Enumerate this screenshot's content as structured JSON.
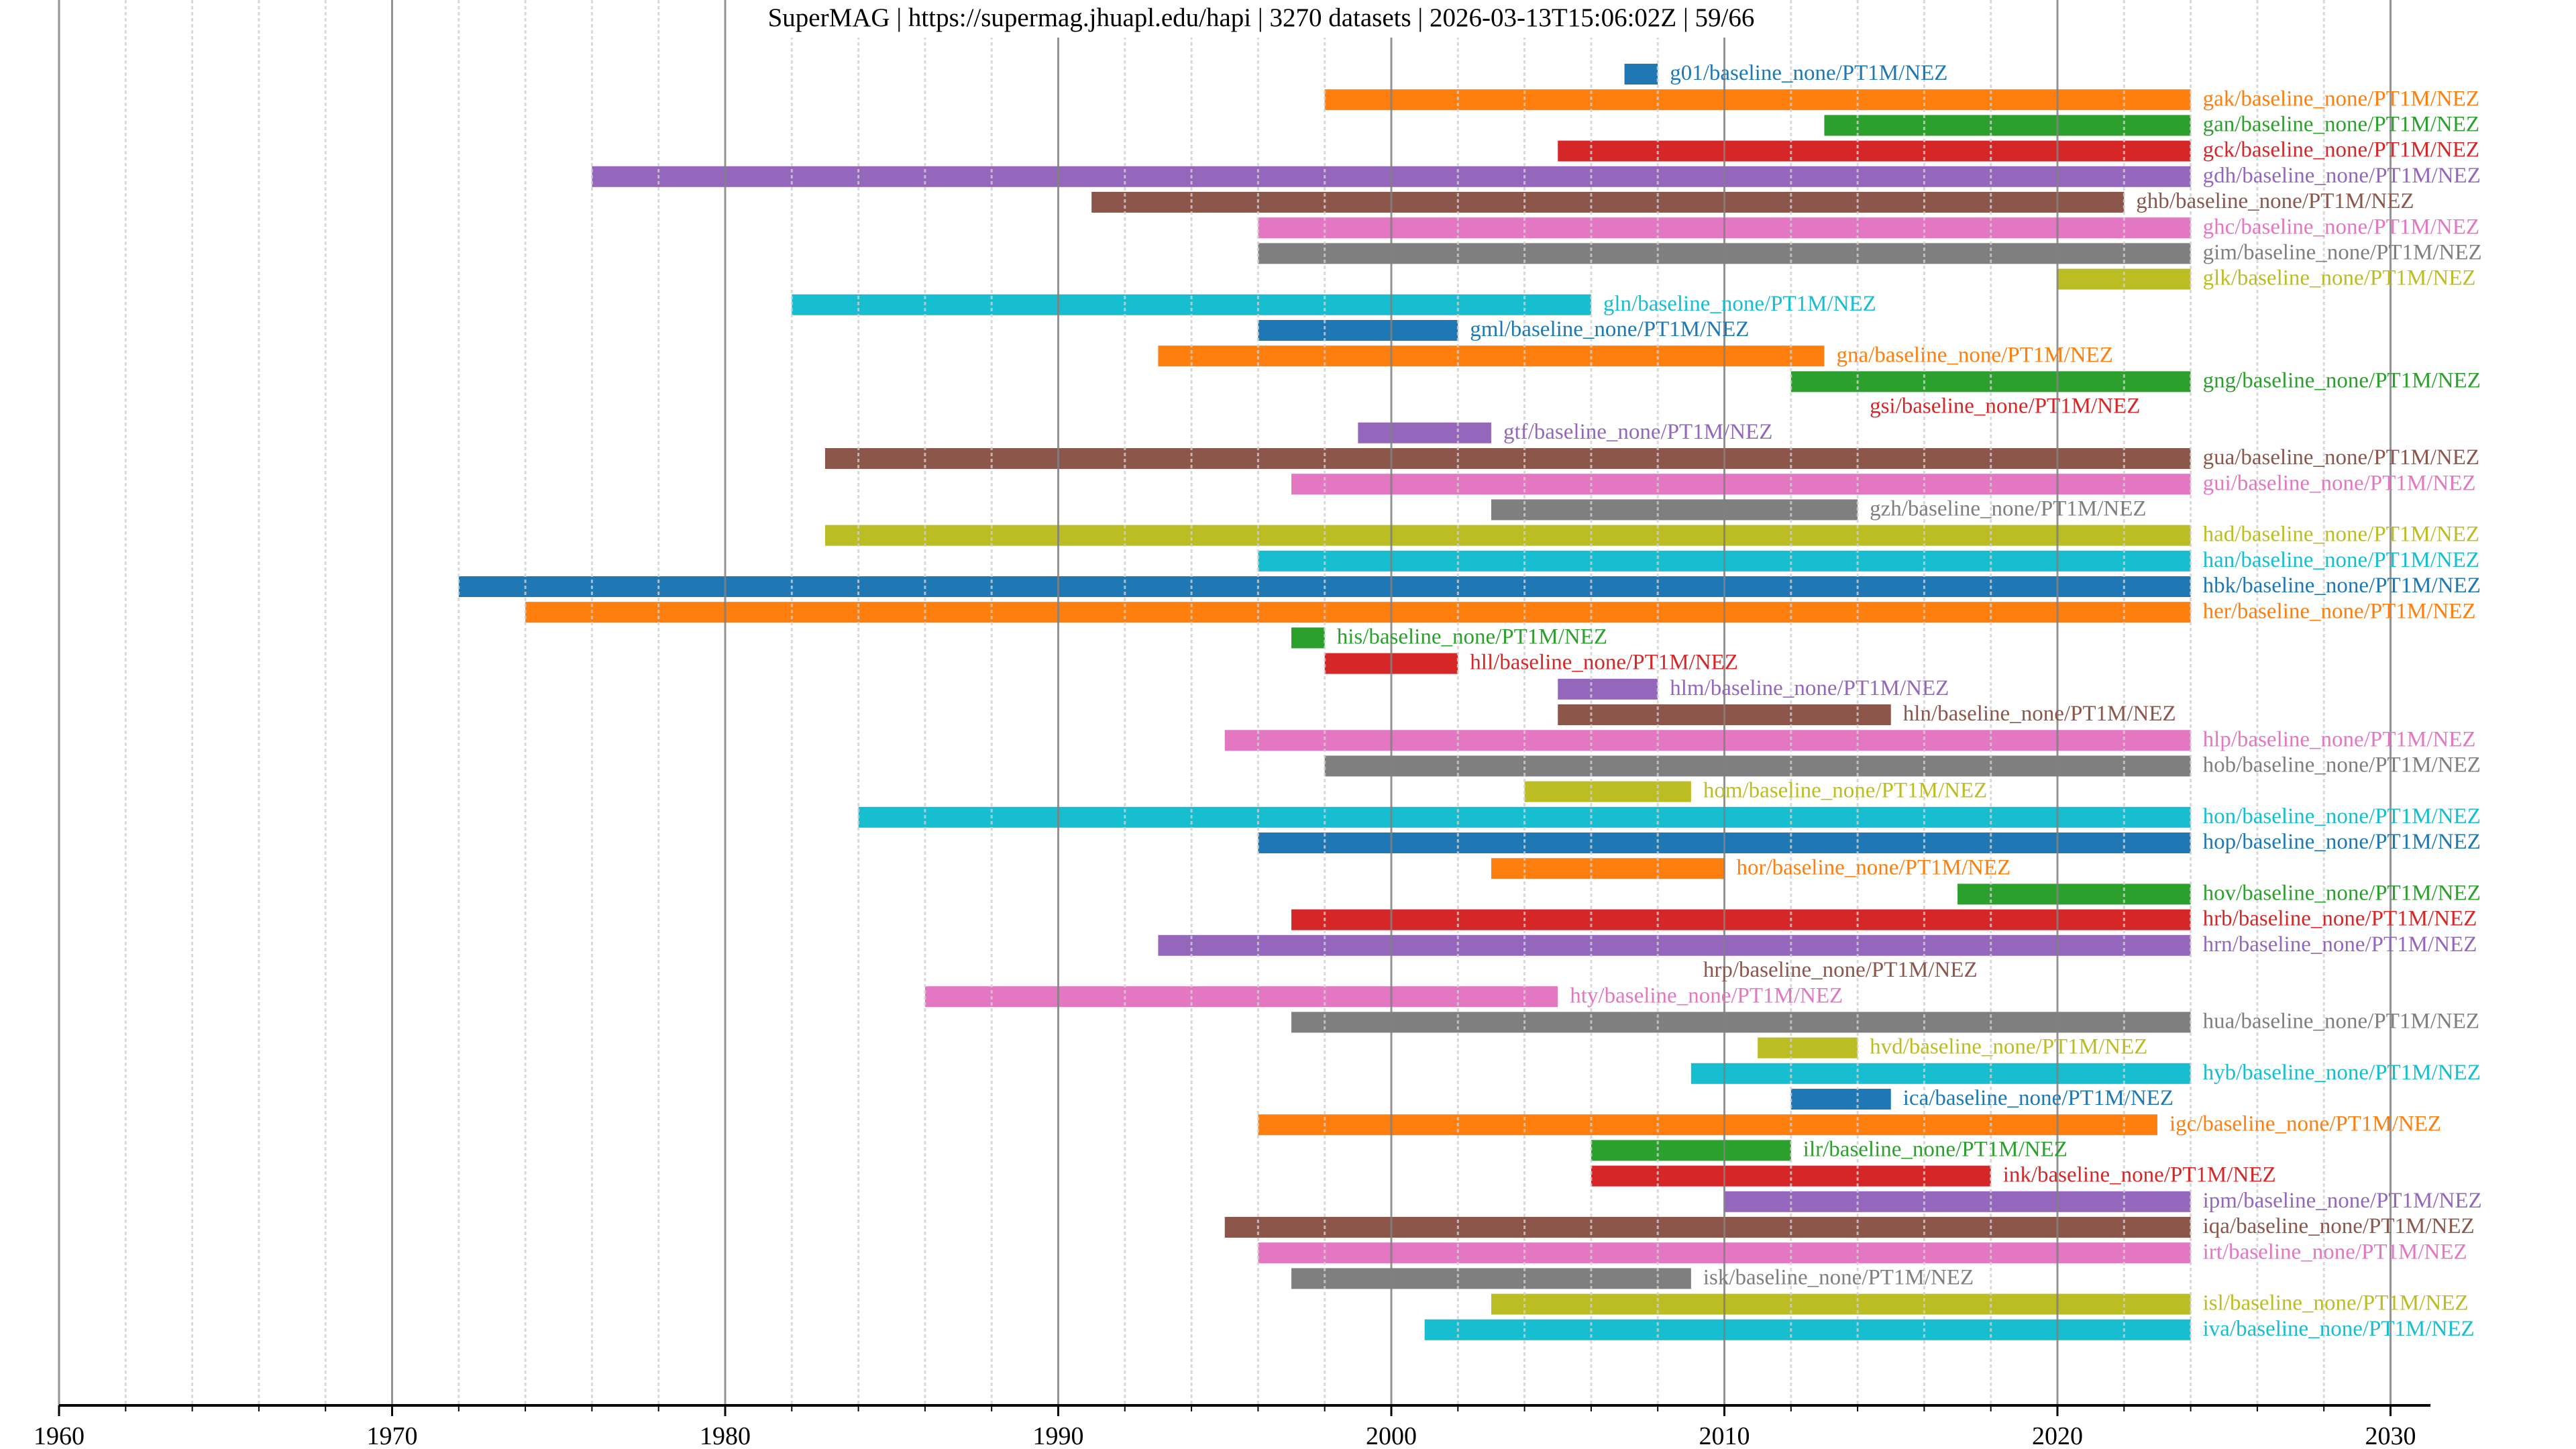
{
  "chart_data": {
    "type": "timeline",
    "title": "SuperMAG | https://supermag.jhuapl.edu/hapi | 3270 datasets | 2026-03-13T15:06:02Z | 59/66",
    "xlabel": "",
    "ylabel": "",
    "xlim": [
      1960,
      2031.2
    ],
    "grid": {
      "major_every_years": 10,
      "minor_every_years": 2
    },
    "x_ticks": [
      1960,
      1970,
      1980,
      1990,
      2000,
      2010,
      2020,
      2030
    ],
    "x_tick_labels": [
      "1960",
      "1970",
      "1980",
      "1990",
      "2000",
      "2010",
      "2020",
      "2030"
    ],
    "palette": [
      "#1f77b4",
      "#ff7f0e",
      "#2ca02c",
      "#d62728",
      "#9467bd",
      "#8c564b",
      "#e377c2",
      "#7f7f7f",
      "#bcbd22",
      "#17becf"
    ],
    "series": [
      {
        "name": "g01/baseline_none/PT1M/NEZ",
        "start": 2007,
        "end": 2008
      },
      {
        "name": "gak/baseline_none/PT1M/NEZ",
        "start": 1998,
        "end": 2024
      },
      {
        "name": "gan/baseline_none/PT1M/NEZ",
        "start": 2013,
        "end": 2024
      },
      {
        "name": "gck/baseline_none/PT1M/NEZ",
        "start": 2005,
        "end": 2024
      },
      {
        "name": "gdh/baseline_none/PT1M/NEZ",
        "start": 1976,
        "end": 2024
      },
      {
        "name": "ghb/baseline_none/PT1M/NEZ",
        "start": 1991,
        "end": 2022
      },
      {
        "name": "ghc/baseline_none/PT1M/NEZ",
        "start": 1996,
        "end": 2024
      },
      {
        "name": "gim/baseline_none/PT1M/NEZ",
        "start": 1996,
        "end": 2024
      },
      {
        "name": "glk/baseline_none/PT1M/NEZ",
        "start": 2020,
        "end": 2024
      },
      {
        "name": "gln/baseline_none/PT1M/NEZ",
        "start": 1982,
        "end": 2006
      },
      {
        "name": "gml/baseline_none/PT1M/NEZ",
        "start": 1996,
        "end": 2002
      },
      {
        "name": "gna/baseline_none/PT1M/NEZ",
        "start": 1993,
        "end": 2013
      },
      {
        "name": "gng/baseline_none/PT1M/NEZ",
        "start": 2012,
        "end": 2024
      },
      {
        "name": "gsi/baseline_none/PT1M/NEZ",
        "start": 2014,
        "end": 2014
      },
      {
        "name": "gtf/baseline_none/PT1M/NEZ",
        "start": 1999,
        "end": 2003
      },
      {
        "name": "gua/baseline_none/PT1M/NEZ",
        "start": 1983,
        "end": 2024
      },
      {
        "name": "gui/baseline_none/PT1M/NEZ",
        "start": 1997,
        "end": 2024
      },
      {
        "name": "gzh/baseline_none/PT1M/NEZ",
        "start": 2003,
        "end": 2014
      },
      {
        "name": "had/baseline_none/PT1M/NEZ",
        "start": 1983,
        "end": 2024
      },
      {
        "name": "han/baseline_none/PT1M/NEZ",
        "start": 1996,
        "end": 2024
      },
      {
        "name": "hbk/baseline_none/PT1M/NEZ",
        "start": 1972,
        "end": 2024
      },
      {
        "name": "her/baseline_none/PT1M/NEZ",
        "start": 1974,
        "end": 2024
      },
      {
        "name": "his/baseline_none/PT1M/NEZ",
        "start": 1997,
        "end": 1998
      },
      {
        "name": "hll/baseline_none/PT1M/NEZ",
        "start": 1998,
        "end": 2002
      },
      {
        "name": "hlm/baseline_none/PT1M/NEZ",
        "start": 2005,
        "end": 2008
      },
      {
        "name": "hln/baseline_none/PT1M/NEZ",
        "start": 2005,
        "end": 2015
      },
      {
        "name": "hlp/baseline_none/PT1M/NEZ",
        "start": 1995,
        "end": 2024
      },
      {
        "name": "hob/baseline_none/PT1M/NEZ",
        "start": 1998,
        "end": 2024
      },
      {
        "name": "hom/baseline_none/PT1M/NEZ",
        "start": 2004,
        "end": 2009
      },
      {
        "name": "hon/baseline_none/PT1M/NEZ",
        "start": 1984,
        "end": 2024
      },
      {
        "name": "hop/baseline_none/PT1M/NEZ",
        "start": 1996,
        "end": 2024
      },
      {
        "name": "hor/baseline_none/PT1M/NEZ",
        "start": 2003,
        "end": 2010
      },
      {
        "name": "hov/baseline_none/PT1M/NEZ",
        "start": 2017,
        "end": 2024
      },
      {
        "name": "hrb/baseline_none/PT1M/NEZ",
        "start": 1997,
        "end": 2024
      },
      {
        "name": "hrn/baseline_none/PT1M/NEZ",
        "start": 1993,
        "end": 2024
      },
      {
        "name": "hrp/baseline_none/PT1M/NEZ",
        "start": 2009,
        "end": 2009
      },
      {
        "name": "hty/baseline_none/PT1M/NEZ",
        "start": 1986,
        "end": 2005
      },
      {
        "name": "hua/baseline_none/PT1M/NEZ",
        "start": 1997,
        "end": 2024
      },
      {
        "name": "hvd/baseline_none/PT1M/NEZ",
        "start": 2011,
        "end": 2014
      },
      {
        "name": "hyb/baseline_none/PT1M/NEZ",
        "start": 2009,
        "end": 2024
      },
      {
        "name": "ica/baseline_none/PT1M/NEZ",
        "start": 2012,
        "end": 2015
      },
      {
        "name": "igc/baseline_none/PT1M/NEZ",
        "start": 1996,
        "end": 2023
      },
      {
        "name": "ilr/baseline_none/PT1M/NEZ",
        "start": 2006,
        "end": 2012
      },
      {
        "name": "ink/baseline_none/PT1M/NEZ",
        "start": 2006,
        "end": 2018
      },
      {
        "name": "ipm/baseline_none/PT1M/NEZ",
        "start": 2010,
        "end": 2024
      },
      {
        "name": "iqa/baseline_none/PT1M/NEZ",
        "start": 1995,
        "end": 2024
      },
      {
        "name": "irt/baseline_none/PT1M/NEZ",
        "start": 1996,
        "end": 2024
      },
      {
        "name": "isk/baseline_none/PT1M/NEZ",
        "start": 1997,
        "end": 2009
      },
      {
        "name": "isl/baseline_none/PT1M/NEZ",
        "start": 2003,
        "end": 2024
      },
      {
        "name": "iva/baseline_none/PT1M/NEZ",
        "start": 2001,
        "end": 2024
      }
    ]
  }
}
